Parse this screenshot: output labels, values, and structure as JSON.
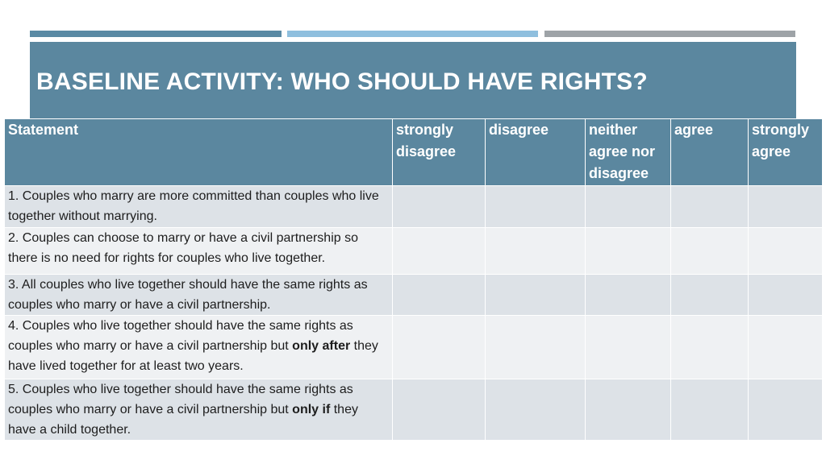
{
  "title": "BASELINE ACTIVITY: WHO SHOULD HAVE RIGHTS?",
  "colors": {
    "header_bg": "#5b879f",
    "row_odd": "#dde2e7",
    "row_even": "#eff1f3",
    "bar_1": "#5a8aa4",
    "bar_2": "#8fbfde",
    "bar_3": "#9ea3a7"
  },
  "table": {
    "headers": [
      "Statement",
      "strongly disagree",
      "disagree",
      "neither agree nor disagree",
      "agree",
      "strongly agree"
    ],
    "rows": [
      {
        "pre": "1. Couples who marry are more committed than couples who live together without marrying.",
        "bold": "",
        "post": ""
      },
      {
        "pre": "2. Couples can choose to marry or have a civil partnership so there is no need for rights for couples who live together.",
        "bold": "",
        "post": ""
      },
      {
        "pre": "3.  All couples who live together should have the same rights as couples who marry or have a civil partnership.",
        "bold": "",
        "post": ""
      },
      {
        "pre": "4. Couples who live together should have the same rights as couples who marry or have a civil partnership but ",
        "bold": "only after",
        "post": " they have lived together for at least two years."
      },
      {
        "pre": "5. Couples who live together should have the same rights as couples who marry or have a civil partnership but ",
        "bold": "only if",
        "post": " they have a child together."
      }
    ]
  }
}
